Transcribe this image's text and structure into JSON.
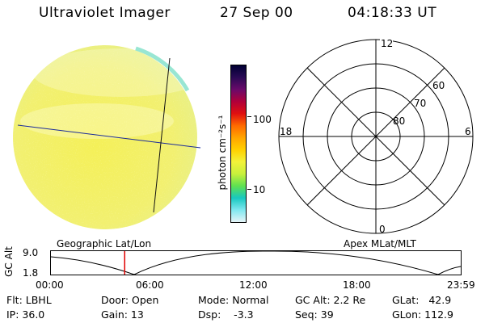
{
  "header": {
    "title": "Ultraviolet Imager",
    "date": "27 Sep 00",
    "time": "04:18:33 UT"
  },
  "colorbar": {
    "unit_label": "photon cm⁻²s⁻¹",
    "ticks": [
      "100",
      "10"
    ],
    "colors": [
      "#000033",
      "#2a0a55",
      "#6a0a6a",
      "#b0003a",
      "#e01010",
      "#ff6a00",
      "#ffa500",
      "#ffd000",
      "#f2f23a",
      "#c8f03c",
      "#5fe050",
      "#18c8c0",
      "#80e8f0",
      "#e6f4f8"
    ]
  },
  "polar_plot": {
    "mlt_labels": {
      "top": "12",
      "right": "6",
      "bottom": "0",
      "left": "18"
    },
    "lat_labels": [
      "60",
      "70",
      "80"
    ]
  },
  "timeline": {
    "left_title": "Geographic Lat/Lon",
    "right_title": "Apex MLat/MLT",
    "axis_label": "GC Alt",
    "y_ticks": [
      "9.0",
      "1.8"
    ],
    "x_ticks": [
      "00:00",
      "06:00",
      "12:00",
      "18:00",
      "23:59"
    ],
    "current_time_fraction": 0.18
  },
  "status": {
    "flt": "Flt: LBHL",
    "ip": "IP: 36.0",
    "door": "Door: Open",
    "gain": "Gain: 13",
    "mode": "Mode: Normal",
    "dsp": "Dsp:    -3.3",
    "gc_alt": "GC Alt: 2.2 Re",
    "seq": "Seq: 39",
    "glat": "GLat:   42.9",
    "glon": "GLon: 112.9"
  }
}
